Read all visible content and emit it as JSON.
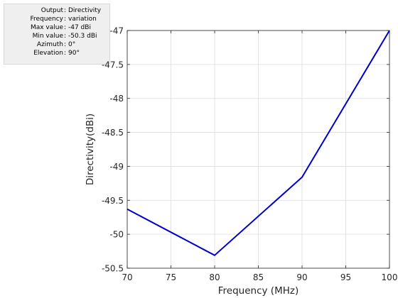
{
  "info_panel": {
    "rows": [
      {
        "key": "Output",
        "value": "Directivity"
      },
      {
        "key": "Frequency",
        "value": "variation"
      },
      {
        "key": "Max value",
        "value": "-47 dBi"
      },
      {
        "key": "Min value",
        "value": "-50.3 dBi"
      },
      {
        "key": "Azimuth",
        "value": "0°"
      },
      {
        "key": "Elevation",
        "value": "90°"
      }
    ]
  },
  "chart_data": {
    "type": "line",
    "title": "",
    "xlabel": "Frequency (MHz)",
    "ylabel": "Directivity(dBi)",
    "xlim": [
      70,
      100
    ],
    "ylim": [
      -50.5,
      -47
    ],
    "xticks": [
      70,
      75,
      80,
      85,
      90,
      95,
      100
    ],
    "yticks": [
      -50.5,
      -50,
      -49.5,
      -49,
      -48.5,
      -48,
      -47.5,
      -47
    ],
    "xtick_labels": [
      "70",
      "75",
      "80",
      "85",
      "90",
      "95",
      "100"
    ],
    "ytick_labels": [
      "-50.5",
      "-50",
      "-49.5",
      "-49",
      "-48.5",
      "-48",
      "-47.5",
      "-47"
    ],
    "grid": true,
    "series": [
      {
        "color": "#0000cc",
        "x": [
          70,
          80,
          90,
          100
        ],
        "y": [
          -49.63,
          -50.31,
          -49.16,
          -47.0
        ]
      }
    ]
  }
}
